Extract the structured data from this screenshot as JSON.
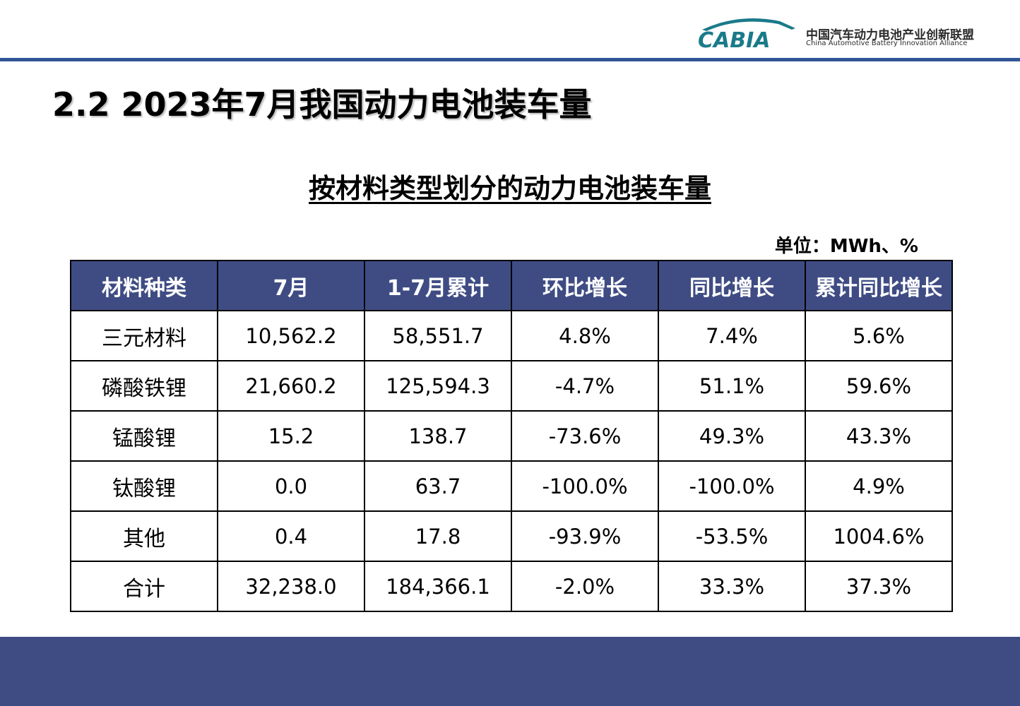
{
  "logo": {
    "mark": "CABIA",
    "cn": "中国汽车动力电池产业创新联盟",
    "en": "China Automotive Battery Innovation Alliance"
  },
  "page_title": "2.2 2023年7月我国动力电池装车量",
  "subtitle": "按材料类型划分的动力电池装车量",
  "unit": "单位：MWh、%",
  "colors": {
    "header_bar": "#2f5597",
    "table_header": "#3f4c84",
    "footer": "#3f4c84",
    "logo_teal": "#1a7a8a"
  },
  "table": {
    "headers": [
      "材料种类",
      "7月",
      "1-7月累计",
      "环比增长",
      "同比增长",
      "累计同比增长"
    ],
    "rows": [
      [
        "三元材料",
        "10,562.2",
        "58,551.7",
        "4.8%",
        "7.4%",
        "5.6%"
      ],
      [
        "磷酸铁锂",
        "21,660.2",
        "125,594.3",
        "-4.7%",
        "51.1%",
        "59.6%"
      ],
      [
        "锰酸锂",
        "15.2",
        "138.7",
        "-73.6%",
        "49.3%",
        "43.3%"
      ],
      [
        "钛酸锂",
        "0.0",
        "63.7",
        "-100.0%",
        "-100.0%",
        "4.9%"
      ],
      [
        "其他",
        "0.4",
        "17.8",
        "-93.9%",
        "-53.5%",
        "1004.6%"
      ],
      [
        "合计",
        "32,238.0",
        "184,366.1",
        "-2.0%",
        "33.3%",
        "37.3%"
      ]
    ]
  }
}
